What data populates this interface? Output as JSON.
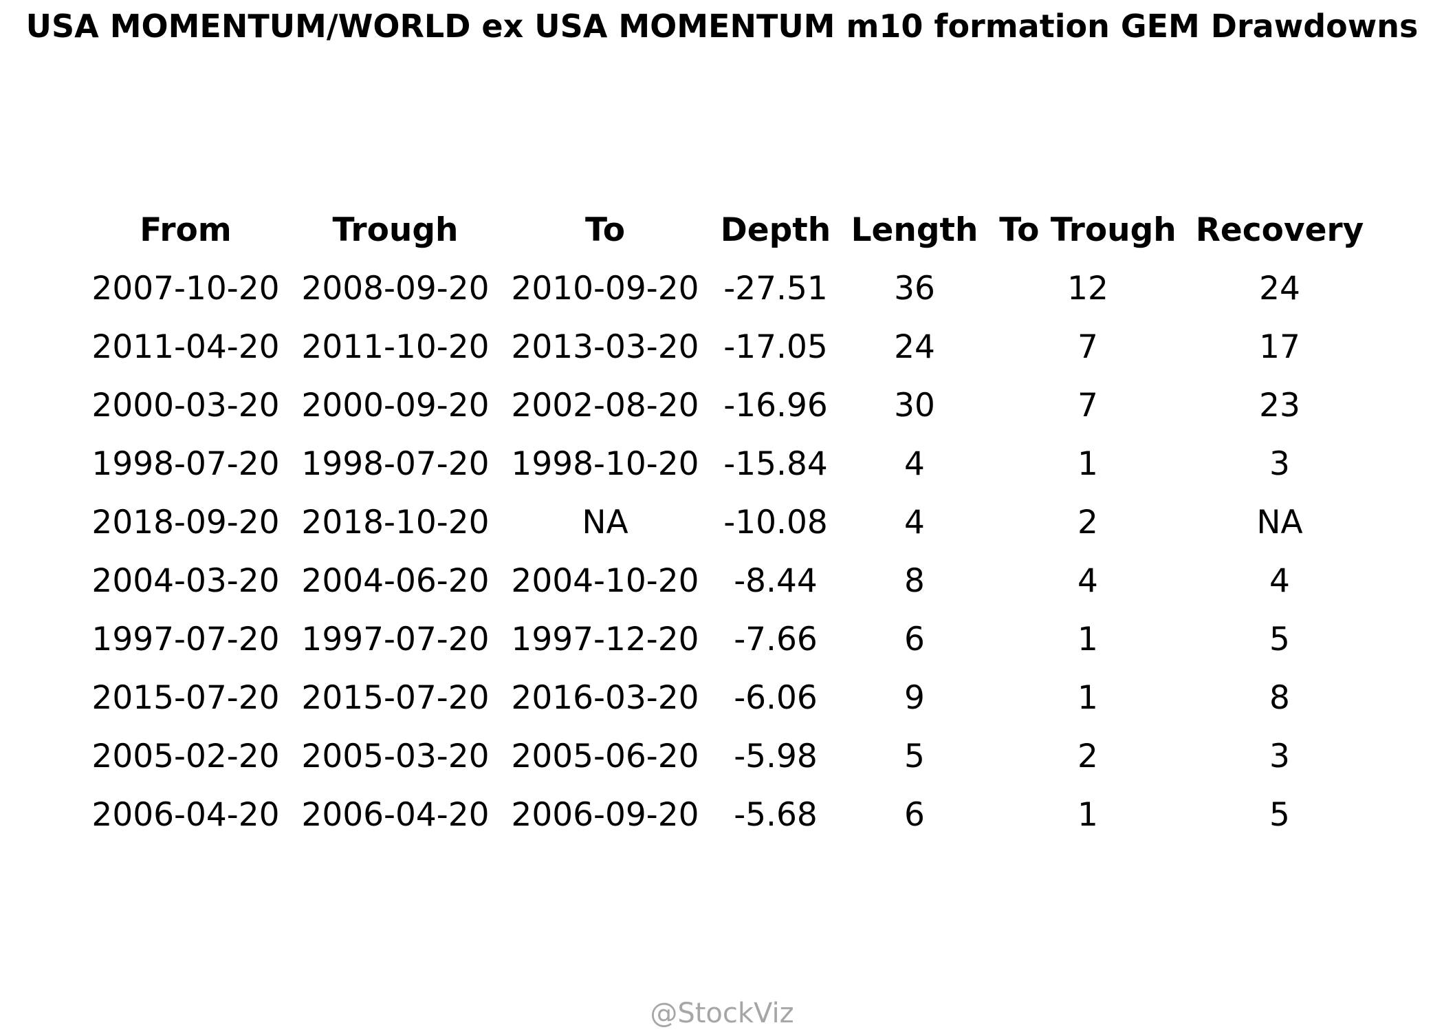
{
  "chart_data": {
    "type": "table",
    "title": "USA MOMENTUM/WORLD ex USA MOMENTUM m10 formation GEM Drawdowns",
    "columns": [
      "From",
      "Trough",
      "To",
      "Depth",
      "Length",
      "To Trough",
      "Recovery"
    ],
    "rows": [
      [
        "2007-10-20",
        "2008-09-20",
        "2010-09-20",
        "-27.51",
        "36",
        "12",
        "24"
      ],
      [
        "2011-04-20",
        "2011-10-20",
        "2013-03-20",
        "-17.05",
        "24",
        "7",
        "17"
      ],
      [
        "2000-03-20",
        "2000-09-20",
        "2002-08-20",
        "-16.96",
        "30",
        "7",
        "23"
      ],
      [
        "1998-07-20",
        "1998-07-20",
        "1998-10-20",
        "-15.84",
        "4",
        "1",
        "3"
      ],
      [
        "2018-09-20",
        "2018-10-20",
        "NA",
        "-10.08",
        "4",
        "2",
        "NA"
      ],
      [
        "2004-03-20",
        "2004-06-20",
        "2004-10-20",
        "-8.44",
        "8",
        "4",
        "4"
      ],
      [
        "1997-07-20",
        "1997-07-20",
        "1997-12-20",
        "-7.66",
        "6",
        "1",
        "5"
      ],
      [
        "2015-07-20",
        "2015-07-20",
        "2016-03-20",
        "-6.06",
        "9",
        "1",
        "8"
      ],
      [
        "2005-02-20",
        "2005-03-20",
        "2005-06-20",
        "-5.98",
        "5",
        "2",
        "3"
      ],
      [
        "2006-04-20",
        "2006-04-20",
        "2006-09-20",
        "-5.68",
        "6",
        "1",
        "5"
      ]
    ]
  },
  "watermark": "@StockViz",
  "colors": {
    "text": "#000000",
    "watermark": "#a6a6a6",
    "background": "#ffffff"
  }
}
